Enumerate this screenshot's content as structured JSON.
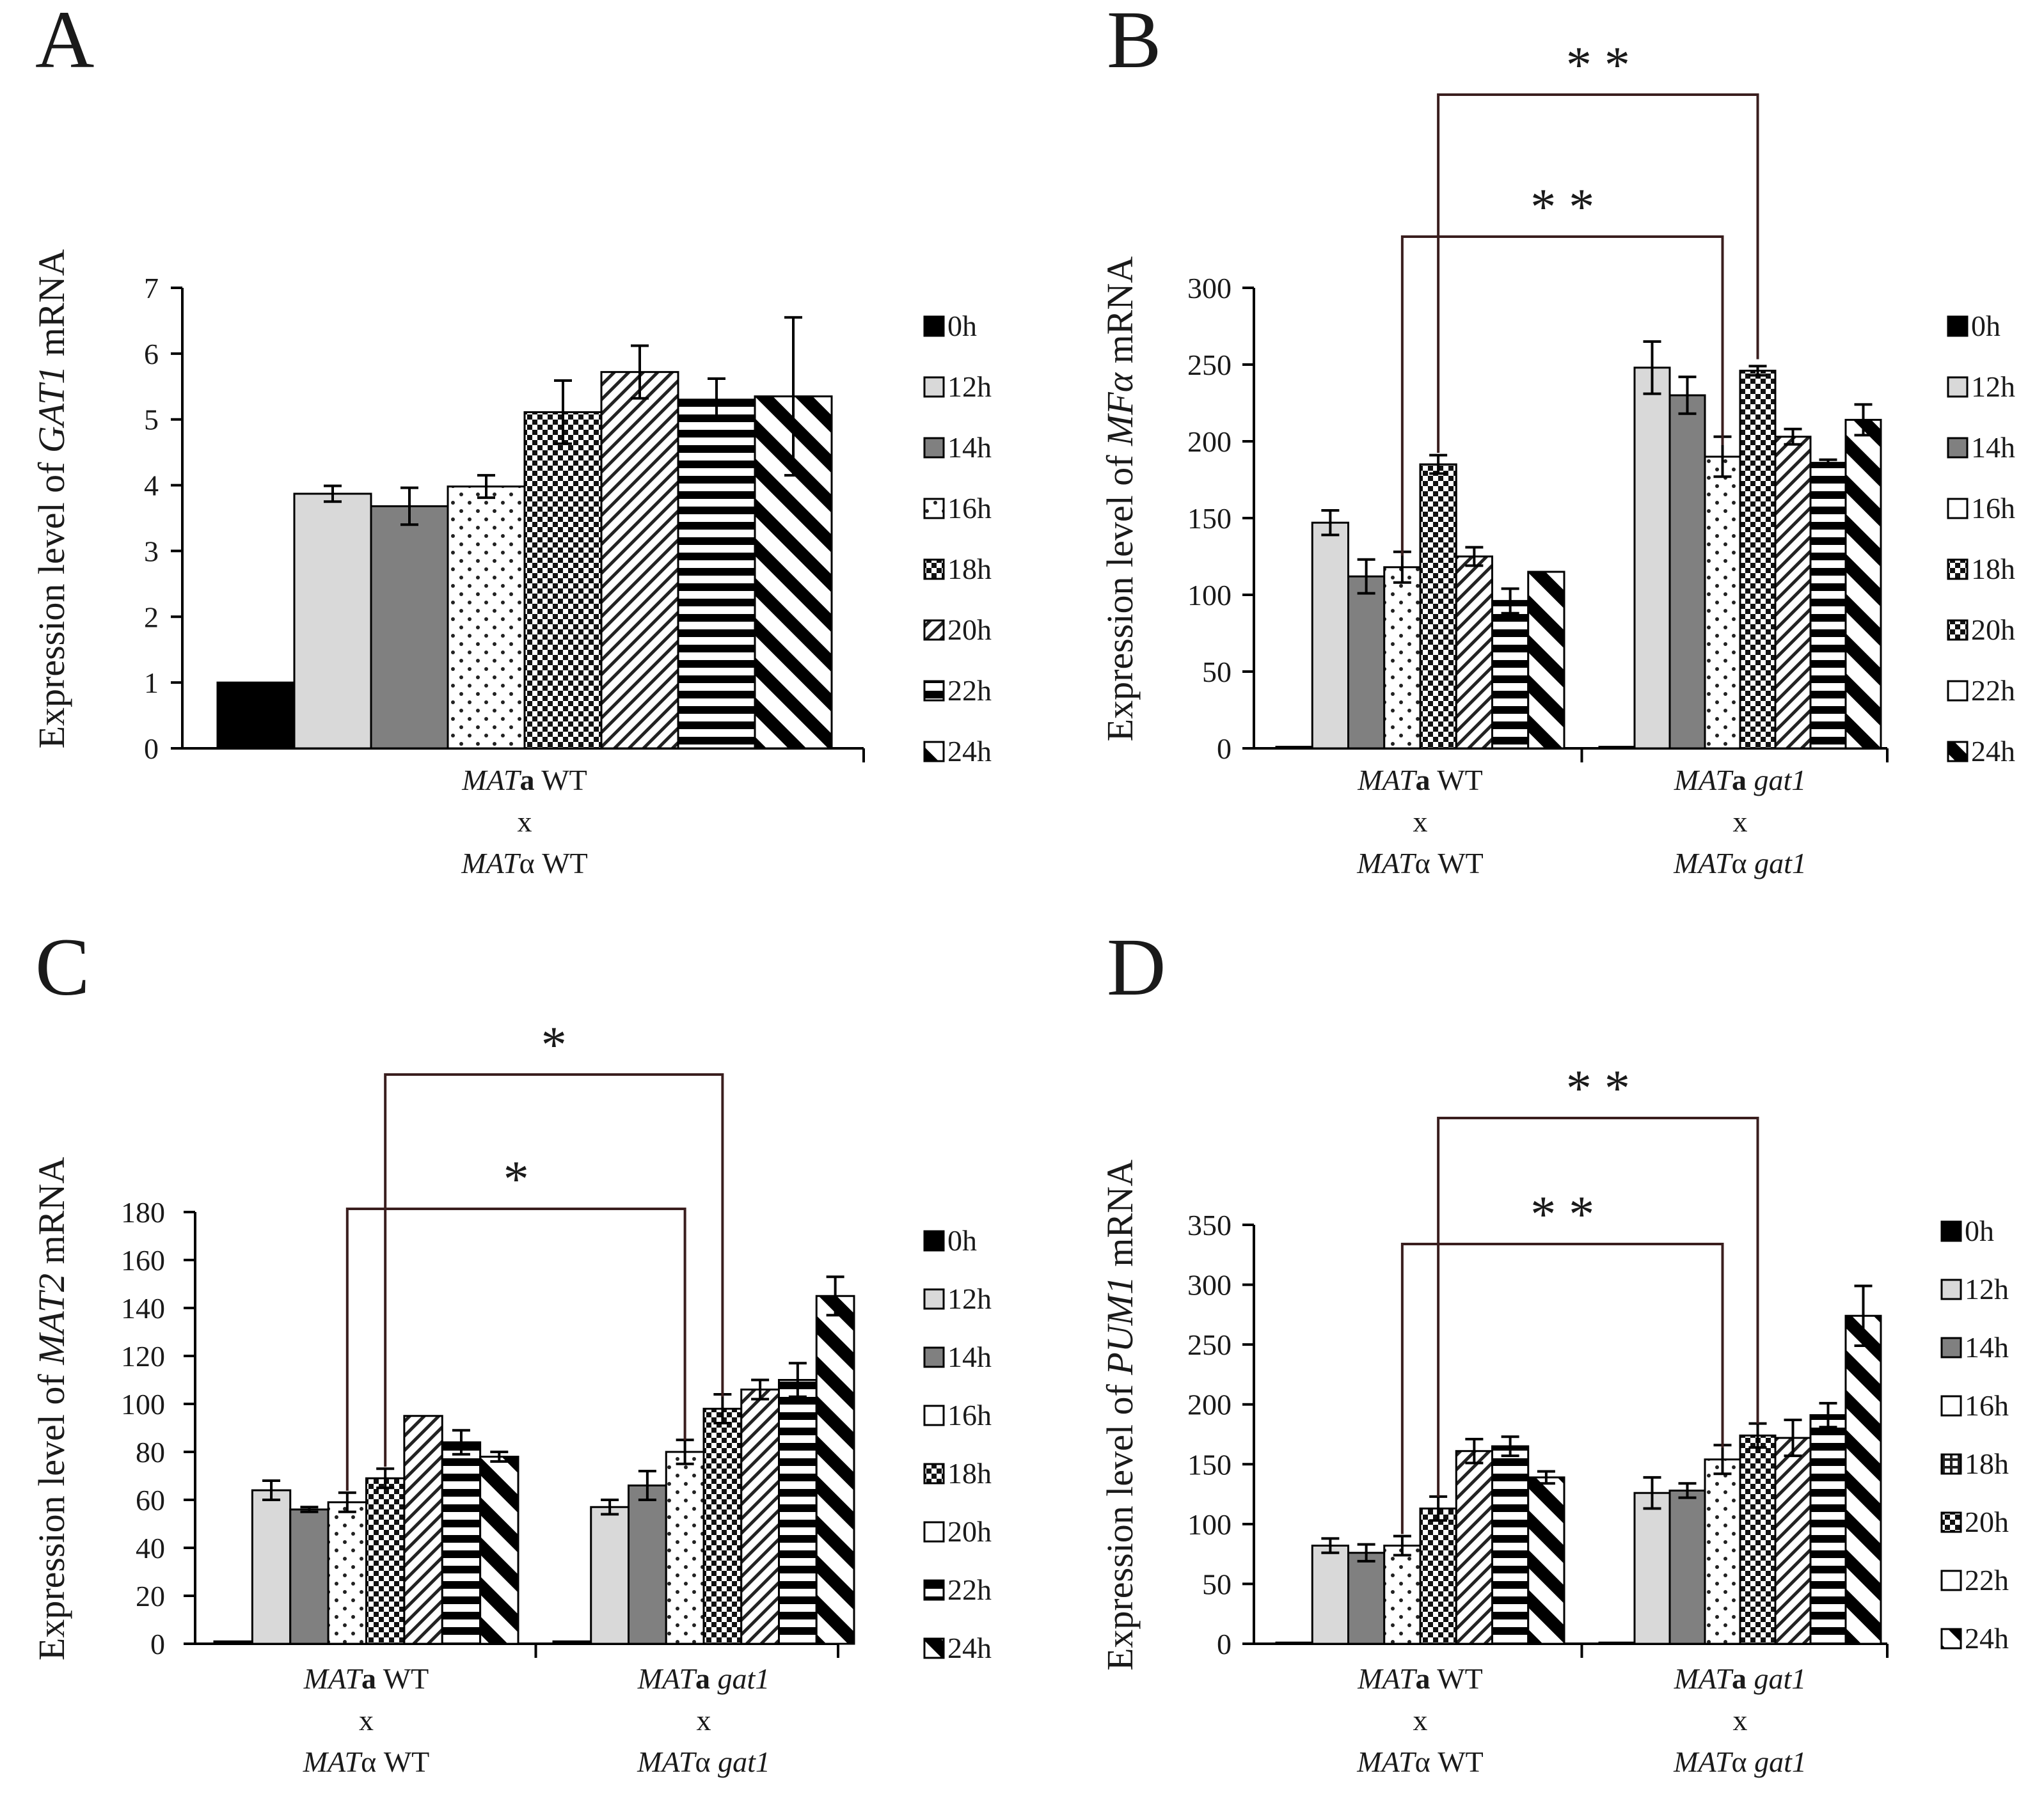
{
  "time_points": [
    "0h",
    "12h",
    "14h",
    "16h",
    "18h",
    "20h",
    "22h",
    "24h"
  ],
  "chart_data": [
    {
      "panel": "A",
      "type": "bar",
      "ylabel_pre": "Expression level of ",
      "ylabel_gene": "GAT1",
      "ylabel_post": " mRNA",
      "ylim": [
        0,
        7
      ],
      "yticks": [
        0,
        1,
        2,
        3,
        4,
        5,
        6,
        7
      ],
      "groups": [
        {
          "line1_it": "MAT",
          "line1_b": "a",
          "line1_rest": " WT",
          "line2": "x",
          "line3_it": "MAT",
          "line3_rest": "α WT",
          "values": [
            1.0,
            3.87,
            3.68,
            3.98,
            5.11,
            5.72,
            5.3,
            5.35
          ],
          "errors": [
            0,
            0.12,
            0.28,
            0.17,
            0.48,
            0.4,
            0.32,
            1.2
          ]
        }
      ],
      "legend": [
        "0h",
        "12h",
        "14h",
        "16h",
        "18h",
        "20h",
        "22h",
        "24h"
      ],
      "legend_patterns": [
        "solid-black",
        "light-gray",
        "dark-gray",
        "dots",
        "checker",
        "diagonal-fine",
        "horizontal",
        "diagonal-bold"
      ],
      "brackets": []
    },
    {
      "panel": "B",
      "type": "bar",
      "ylabel_pre": "Expression level of ",
      "ylabel_gene": "MFα",
      "ylabel_post": " mRNA",
      "ylim": [
        0,
        300
      ],
      "yticks": [
        0,
        50,
        100,
        150,
        200,
        250,
        300
      ],
      "groups": [
        {
          "line1_it": "MAT",
          "line1_b": "a",
          "line1_rest": " WT",
          "line2": "x",
          "line3_it": "MAT",
          "line3_rest": "α WT",
          "values": [
            1,
            147,
            112,
            118,
            185,
            125,
            96,
            115
          ],
          "errors": [
            0,
            8,
            11,
            10,
            6,
            6,
            8,
            0
          ]
        },
        {
          "line1_it": "MAT",
          "line1_b": "a",
          "line1_rest": " gat1",
          "line2": "x",
          "line3_it": "MAT",
          "line3_rest": "α gat1",
          "values": [
            1,
            248,
            230,
            190,
            246,
            203,
            186,
            214
          ],
          "errors": [
            0,
            17,
            12,
            13,
            3,
            5,
            2,
            10
          ]
        }
      ],
      "legend": [
        "0h",
        "12h",
        "14h",
        "16h",
        "18h",
        "20h",
        "22h",
        "24h"
      ],
      "legend_patterns": [
        "solid-black",
        "light-gray",
        "dark-gray",
        "white",
        "checker",
        "checker",
        "white",
        "diagonal-bold"
      ],
      "brackets": [
        {
          "label": "* *",
          "from_group": 0,
          "from_bar": 3,
          "to_group": 1,
          "to_bar": 3,
          "level": 1
        },
        {
          "label": "* *",
          "from_group": 0,
          "from_bar": 4,
          "to_group": 1,
          "to_bar": 4,
          "level": 2
        }
      ]
    },
    {
      "panel": "C",
      "type": "bar",
      "ylabel_pre": "Expression level of ",
      "ylabel_gene": "MAT2",
      "ylabel_post": " mRNA",
      "ylim": [
        0,
        180
      ],
      "yticks": [
        0,
        20,
        40,
        60,
        80,
        100,
        120,
        140,
        160,
        180
      ],
      "groups": [
        {
          "line1_it": "MAT",
          "line1_b": "a",
          "line1_rest": " WT",
          "line2": "x",
          "line3_it": "MAT",
          "line3_rest": "α WT",
          "values": [
            1,
            64,
            56,
            59,
            69,
            95,
            84,
            78
          ],
          "errors": [
            0,
            4,
            1,
            4,
            4,
            0,
            5,
            2
          ]
        },
        {
          "line1_it": "MAT",
          "line1_b": "a",
          "line1_rest": " gat1",
          "line2": "x",
          "line3_it": "MAT",
          "line3_rest": "α gat1",
          "values": [
            1,
            57,
            66,
            80,
            98,
            106,
            110,
            145
          ],
          "errors": [
            0,
            3,
            6,
            5,
            6,
            4,
            7,
            8
          ]
        }
      ],
      "legend": [
        "0h",
        "12h",
        "14h",
        "16h",
        "18h",
        "20h",
        "22h",
        "24h"
      ],
      "legend_patterns": [
        "solid-black",
        "light-gray",
        "dark-gray",
        "white",
        "checker",
        "white",
        "horizontal",
        "diagonal-bold"
      ],
      "brackets": [
        {
          "label": "*",
          "from_group": 0,
          "from_bar": 3,
          "to_group": 1,
          "to_bar": 3,
          "level": 1
        },
        {
          "label": "*",
          "from_group": 0,
          "from_bar": 4,
          "to_group": 1,
          "to_bar": 4,
          "level": 2
        }
      ]
    },
    {
      "panel": "D",
      "type": "bar",
      "ylabel_pre": "Expression level of ",
      "ylabel_gene": "PUM1",
      "ylabel_post": " mRNA",
      "ylim": [
        0,
        350
      ],
      "yticks": [
        0,
        50,
        100,
        150,
        200,
        250,
        300,
        350
      ],
      "groups": [
        {
          "line1_it": "MAT",
          "line1_b": "a",
          "line1_rest": " WT",
          "line2": "x",
          "line3_it": "MAT",
          "line3_rest": "α WT",
          "values": [
            1,
            82,
            76,
            82,
            113,
            161,
            165,
            139
          ],
          "errors": [
            0,
            6,
            7,
            8,
            10,
            10,
            8,
            5
          ]
        },
        {
          "line1_it": "MAT",
          "line1_b": "a",
          "line1_rest": " gat1",
          "line2": "x",
          "line3_it": "MAT",
          "line3_rest": "α gat1",
          "values": [
            1,
            126,
            128,
            154,
            174,
            172,
            191,
            274
          ],
          "errors": [
            0,
            13,
            6,
            12,
            10,
            15,
            10,
            25
          ]
        }
      ],
      "legend": [
        "0h",
        "12h",
        "14h",
        "16h",
        "18h",
        "20h",
        "22h",
        "24h"
      ],
      "legend_patterns": [
        "solid-black",
        "light-gray",
        "dark-gray",
        "white",
        "grid",
        "checker",
        "white",
        "diagonal-bold"
      ],
      "brackets": [
        {
          "label": "* *",
          "from_group": 0,
          "from_bar": 3,
          "to_group": 1,
          "to_bar": 3,
          "level": 1
        },
        {
          "label": "* *",
          "from_group": 0,
          "from_bar": 4,
          "to_group": 1,
          "to_bar": 4,
          "level": 2
        }
      ]
    }
  ]
}
